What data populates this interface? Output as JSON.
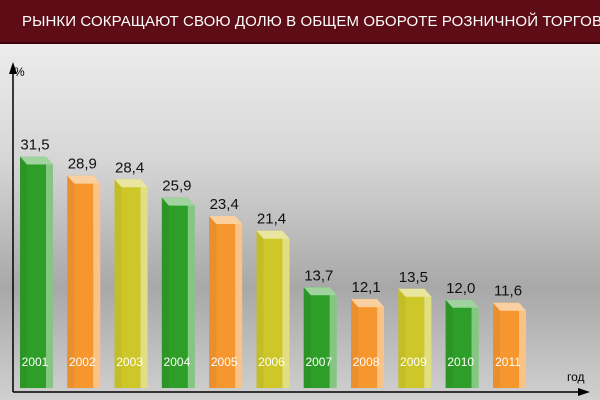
{
  "header": {
    "title": "РЫНКИ СОКРАЩАЮТ СВОЮ ДОЛЮ В ОБЩЕМ ОБОРОТЕ РОЗНИЧНОЙ ТОРГОВЛИ"
  },
  "chart_data": {
    "type": "bar",
    "title": "РЫНКИ СОКРАЩАЮТ СВОЮ ДОЛЮ В ОБЩЕМ ОБОРОТЕ РОЗНИЧНОЙ ТОРГОВЛИ",
    "ylabel": "%",
    "xlabel": "год",
    "categories": [
      "2001",
      "2002",
      "2003",
      "2004",
      "2005",
      "2006",
      "2007",
      "2008",
      "2009",
      "2010",
      "2011"
    ],
    "values": [
      31.5,
      28.9,
      28.4,
      25.9,
      23.4,
      21.4,
      13.7,
      12.1,
      13.5,
      12.0,
      11.6
    ],
    "value_labels": [
      "31,5",
      "28,9",
      "28,4",
      "25,9",
      "23,4",
      "21,4",
      "13,7",
      "12,1",
      "13,5",
      "12,0",
      "11,6"
    ],
    "colors": [
      "#2d9e27",
      "#f5962f",
      "#cdc72a",
      "#2d9e27",
      "#f5962f",
      "#cdc72a",
      "#2d9e27",
      "#f5962f",
      "#cdc72a",
      "#2d9e27",
      "#f5962f"
    ],
    "ylim": [
      0,
      35
    ],
    "grid": false,
    "legend": "none"
  }
}
